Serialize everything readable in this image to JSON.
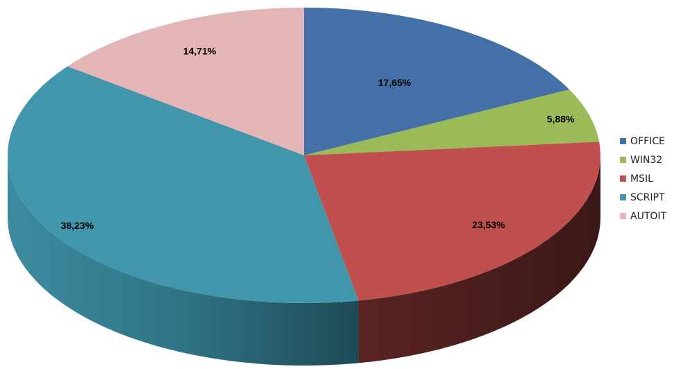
{
  "chart_data": {
    "type": "pie",
    "style": "3d",
    "categories": [
      "OFFICE",
      "WIN32",
      "MSIL",
      "SCRIPT",
      "AUTOIT"
    ],
    "values": [
      17.65,
      5.88,
      23.53,
      38.23,
      14.71
    ],
    "data_labels": [
      "17,65%",
      "5,88%",
      "23,53%",
      "38,23%",
      "14,71%"
    ],
    "colors": [
      "#4470A8",
      "#9BBB59",
      "#C0504D",
      "#4196AC",
      "#E4B5B5"
    ],
    "side_colors": [
      "#2E4E77",
      "#6A823C",
      "#4A1F1E",
      "#2A6577",
      "#A88080"
    ],
    "legend_position": "right",
    "title": ""
  },
  "legend": {
    "items": [
      {
        "label": "OFFICE",
        "color": "#4470A8"
      },
      {
        "label": "WIN32",
        "color": "#9BBB59"
      },
      {
        "label": "MSIL",
        "color": "#C0504D"
      },
      {
        "label": "SCRIPT",
        "color": "#4196AC"
      },
      {
        "label": "AUTOIT",
        "color": "#E4B5B5"
      }
    ]
  }
}
